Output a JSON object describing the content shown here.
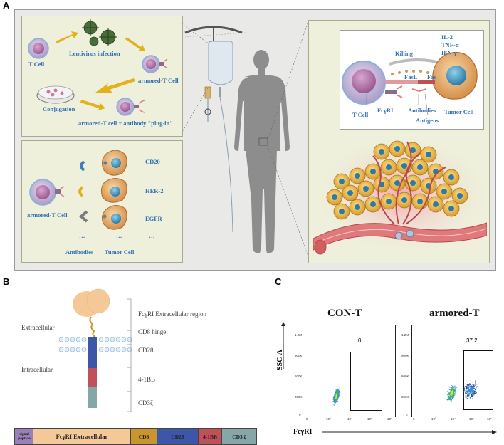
{
  "panels": {
    "a": "A",
    "b": "B",
    "c": "C"
  },
  "panel_a": {
    "steps": {
      "t_cell": "T Cell",
      "lentivirus": "Lentivirus infection",
      "armored_t_cell": "armored-T Cell",
      "conjugation": "Conjugation",
      "plug_in": "armored-T cell + antibody \"plug-in\""
    },
    "targets": {
      "armored_t_cell": "armored-T Cell",
      "cd20": "CD20",
      "her2": "HER-2",
      "egfr": "EGFR",
      "dots1": "···",
      "dots2": "···",
      "dots3": "···",
      "antibodies": "Antibodies",
      "tumor_cell": "Tumor Cell"
    },
    "killing": {
      "il2": "IL-2",
      "tnf": "TNF-α",
      "ifn": "IFN-γ",
      "killing": "Killing",
      "fasl": "FasL",
      "fas": "Fas",
      "t_cell": "T Cell",
      "fcgri": "FcγRI",
      "antibodies": "Antibodies",
      "antigens": "Antigens",
      "tumor_cell": "Tumor Cell"
    }
  },
  "panel_b": {
    "extracellular": "Extracellular",
    "intracellular": "Intracellular",
    "labels": [
      "FcγRI Extracellular region",
      "CD8 hinge",
      "CD28",
      "4-1BB",
      "CD3ζ"
    ],
    "bar": {
      "signal": "signal peptide",
      "fcgri": "FcγRI Extracellular",
      "cd8": "CD8",
      "cd28": "CD28",
      "bb": "4-1BB",
      "cd3": "CD3 ζ"
    },
    "colors": {
      "signal": "#9a7fb8",
      "fcgri": "#f5c898",
      "cd8": "#c9952e",
      "cd28": "#3d56a8",
      "bb": "#c0505a",
      "cd3": "#86a7a8"
    }
  },
  "panel_c": {
    "titles": [
      "CON-T",
      "armored-T"
    ],
    "gate_values": [
      "0",
      "37.2"
    ],
    "ylabel": "SSC-A",
    "xlabel": "FcγRI",
    "y_ticks": [
      "1.2M",
      "900K",
      "600K",
      "300K",
      "0"
    ],
    "x_ticks": [
      "0",
      "10³",
      "10⁴",
      "10⁵",
      "10⁶"
    ]
  }
}
